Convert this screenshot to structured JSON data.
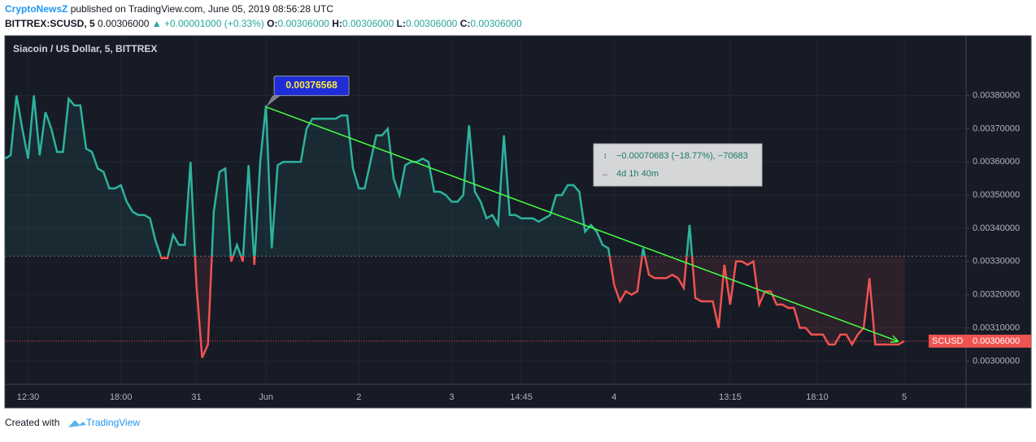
{
  "header": {
    "author": "CryptoNewsZ",
    "published": "published on TradingView.com, June 05, 2019 08:56:28 UTC",
    "symbol": "BITTREX:SCUSD, 5",
    "last": "0.00306000",
    "change": "▲ +0.00001000 (+0.33%)",
    "ohlc": [
      {
        "label": "O:",
        "value": "0.00306000"
      },
      {
        "label": "H:",
        "value": "0.00306000"
      },
      {
        "label": "L:",
        "value": "0.00306000"
      },
      {
        "label": "C:",
        "value": "0.00306000"
      }
    ]
  },
  "footer": {
    "text": "Created with",
    "brand": "TradingView"
  },
  "chart_data": {
    "type": "baseline",
    "title": "Siacoin / US Dollar, 5, BITTREX",
    "categories": [
      null,
      null,
      null,
      null,
      "12:30",
      null,
      null,
      null,
      null,
      null,
      null,
      null,
      null,
      null,
      null,
      null,
      null,
      null,
      null,
      null,
      "18:00",
      null,
      null,
      null,
      null,
      null,
      null,
      null,
      null,
      null,
      null,
      null,
      null,
      "31",
      null,
      null,
      null,
      null,
      null,
      null,
      null,
      null,
      null,
      null,
      null,
      "Jun",
      null,
      null,
      null,
      null,
      null,
      null,
      null,
      null,
      null,
      null,
      null,
      null,
      null,
      null,
      null,
      "2",
      null,
      null,
      null,
      null,
      null,
      null,
      null,
      null,
      null,
      null,
      null,
      null,
      null,
      null,
      null,
      "3",
      null,
      null,
      null,
      null,
      null,
      null,
      null,
      null,
      null,
      null,
      null,
      "14:45",
      null,
      null,
      null,
      null,
      null,
      null,
      null,
      null,
      null,
      null,
      null,
      null,
      null,
      null,
      null,
      "4",
      null,
      null,
      null,
      null,
      null,
      null,
      null,
      null,
      null,
      null,
      null,
      null,
      null,
      null,
      null,
      null,
      null,
      null,
      null,
      "13:15",
      null,
      null,
      null,
      null,
      null,
      null,
      null,
      null,
      null,
      null,
      null,
      null,
      null,
      null,
      "18:10",
      null,
      null,
      null,
      null,
      null,
      null,
      null,
      null,
      null,
      null,
      null,
      null,
      null,
      null,
      "5"
    ],
    "series": [
      {
        "name": "SCUSD",
        "color_up": "#2db39e",
        "color_down": "#ef5350",
        "values": [
          0.00361,
          0.00362,
          0.0038,
          0.0037,
          0.00361,
          0.0038,
          0.00362,
          0.00375,
          0.0037,
          0.00363,
          0.00363,
          0.00379,
          0.00377,
          0.00377,
          0.00364,
          0.00363,
          0.00358,
          0.00357,
          0.00352,
          0.00352,
          0.00353,
          0.00348,
          0.00345,
          0.00344,
          0.00344,
          0.00343,
          0.00336,
          0.00331,
          0.00331,
          0.00338,
          0.00335,
          0.00335,
          0.0036,
          0.00323,
          0.00301,
          0.00305,
          0.00345,
          0.00357,
          0.00358,
          0.0033,
          0.00335,
          0.0033,
          0.00359,
          0.00329,
          0.0036,
          0.00377,
          0.00334,
          0.00359,
          0.0036,
          0.0036,
          0.0036,
          0.0036,
          0.0037,
          0.00373,
          0.00373,
          0.00373,
          0.00373,
          0.00373,
          0.00374,
          0.00374,
          0.00358,
          0.00352,
          0.00352,
          0.0036,
          0.00368,
          0.00368,
          0.0037,
          0.00355,
          0.0035,
          0.00359,
          0.0036,
          0.0036,
          0.00361,
          0.0036,
          0.00351,
          0.00351,
          0.0035,
          0.00348,
          0.00348,
          0.0035,
          0.00371,
          0.00351,
          0.00348,
          0.00343,
          0.00344,
          0.00341,
          0.00368,
          0.00344,
          0.00344,
          0.00343,
          0.00343,
          0.00343,
          0.00342,
          0.00343,
          0.00344,
          0.0035,
          0.0035,
          0.00353,
          0.00353,
          0.00351,
          0.00339,
          0.00341,
          0.00339,
          0.00335,
          0.00334,
          0.00323,
          0.00318,
          0.00321,
          0.0032,
          0.00321,
          0.00334,
          0.00326,
          0.00325,
          0.00325,
          0.00325,
          0.00326,
          0.00325,
          0.00322,
          0.00341,
          0.00319,
          0.00318,
          0.00318,
          0.00318,
          0.0031,
          0.00329,
          0.00317,
          0.0033,
          0.0033,
          0.00329,
          0.0033,
          0.00317,
          0.00321,
          0.00321,
          0.00317,
          0.00317,
          0.00316,
          0.00316,
          0.0031,
          0.0031,
          0.00308,
          0.00308,
          0.00308,
          0.00305,
          0.00305,
          0.00308,
          0.00308,
          0.00305,
          0.00308,
          0.0031,
          0.00325,
          0.00305,
          0.00305,
          0.00305,
          0.00305,
          0.00305,
          0.00306
        ]
      }
    ],
    "baseline": 0.003316,
    "last_price": {
      "value": 0.00306,
      "label": "0.00306000",
      "symbol": "SCUSD"
    },
    "ylim": [
      0.00293,
      0.00398
    ],
    "yticks": [
      {
        "value": 0.003,
        "label": "0.00300000"
      },
      {
        "value": 0.0031,
        "label": "0.00310000"
      },
      {
        "value": 0.0032,
        "label": "0.00320000"
      },
      {
        "value": 0.0033,
        "label": "0.00330000"
      },
      {
        "value": 0.0034,
        "label": "0.00340000"
      },
      {
        "value": 0.0035,
        "label": "0.00350000"
      },
      {
        "value": 0.0036,
        "label": "0.00360000"
      },
      {
        "value": 0.0037,
        "label": "0.00370000"
      },
      {
        "value": 0.0038,
        "label": "0.00380000"
      }
    ],
    "grid": true,
    "trend_line": {
      "start_index": 45,
      "start": {
        "value": 0.00376568,
        "label": "0.00376568"
      },
      "end_index": 154,
      "end": 0.00305885,
      "color": "#44ff44"
    },
    "measure": {
      "change": "−0.00070683 (−18.77%), −70683",
      "duration": "4d 1h 40m"
    }
  }
}
